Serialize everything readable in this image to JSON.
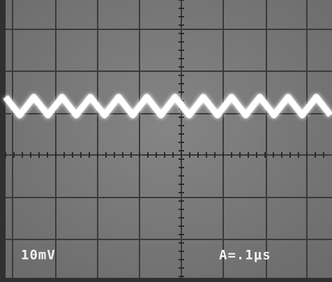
{
  "screen": {
    "vertical_scale": "10mV",
    "timebase": "A=.1μs"
  }
}
